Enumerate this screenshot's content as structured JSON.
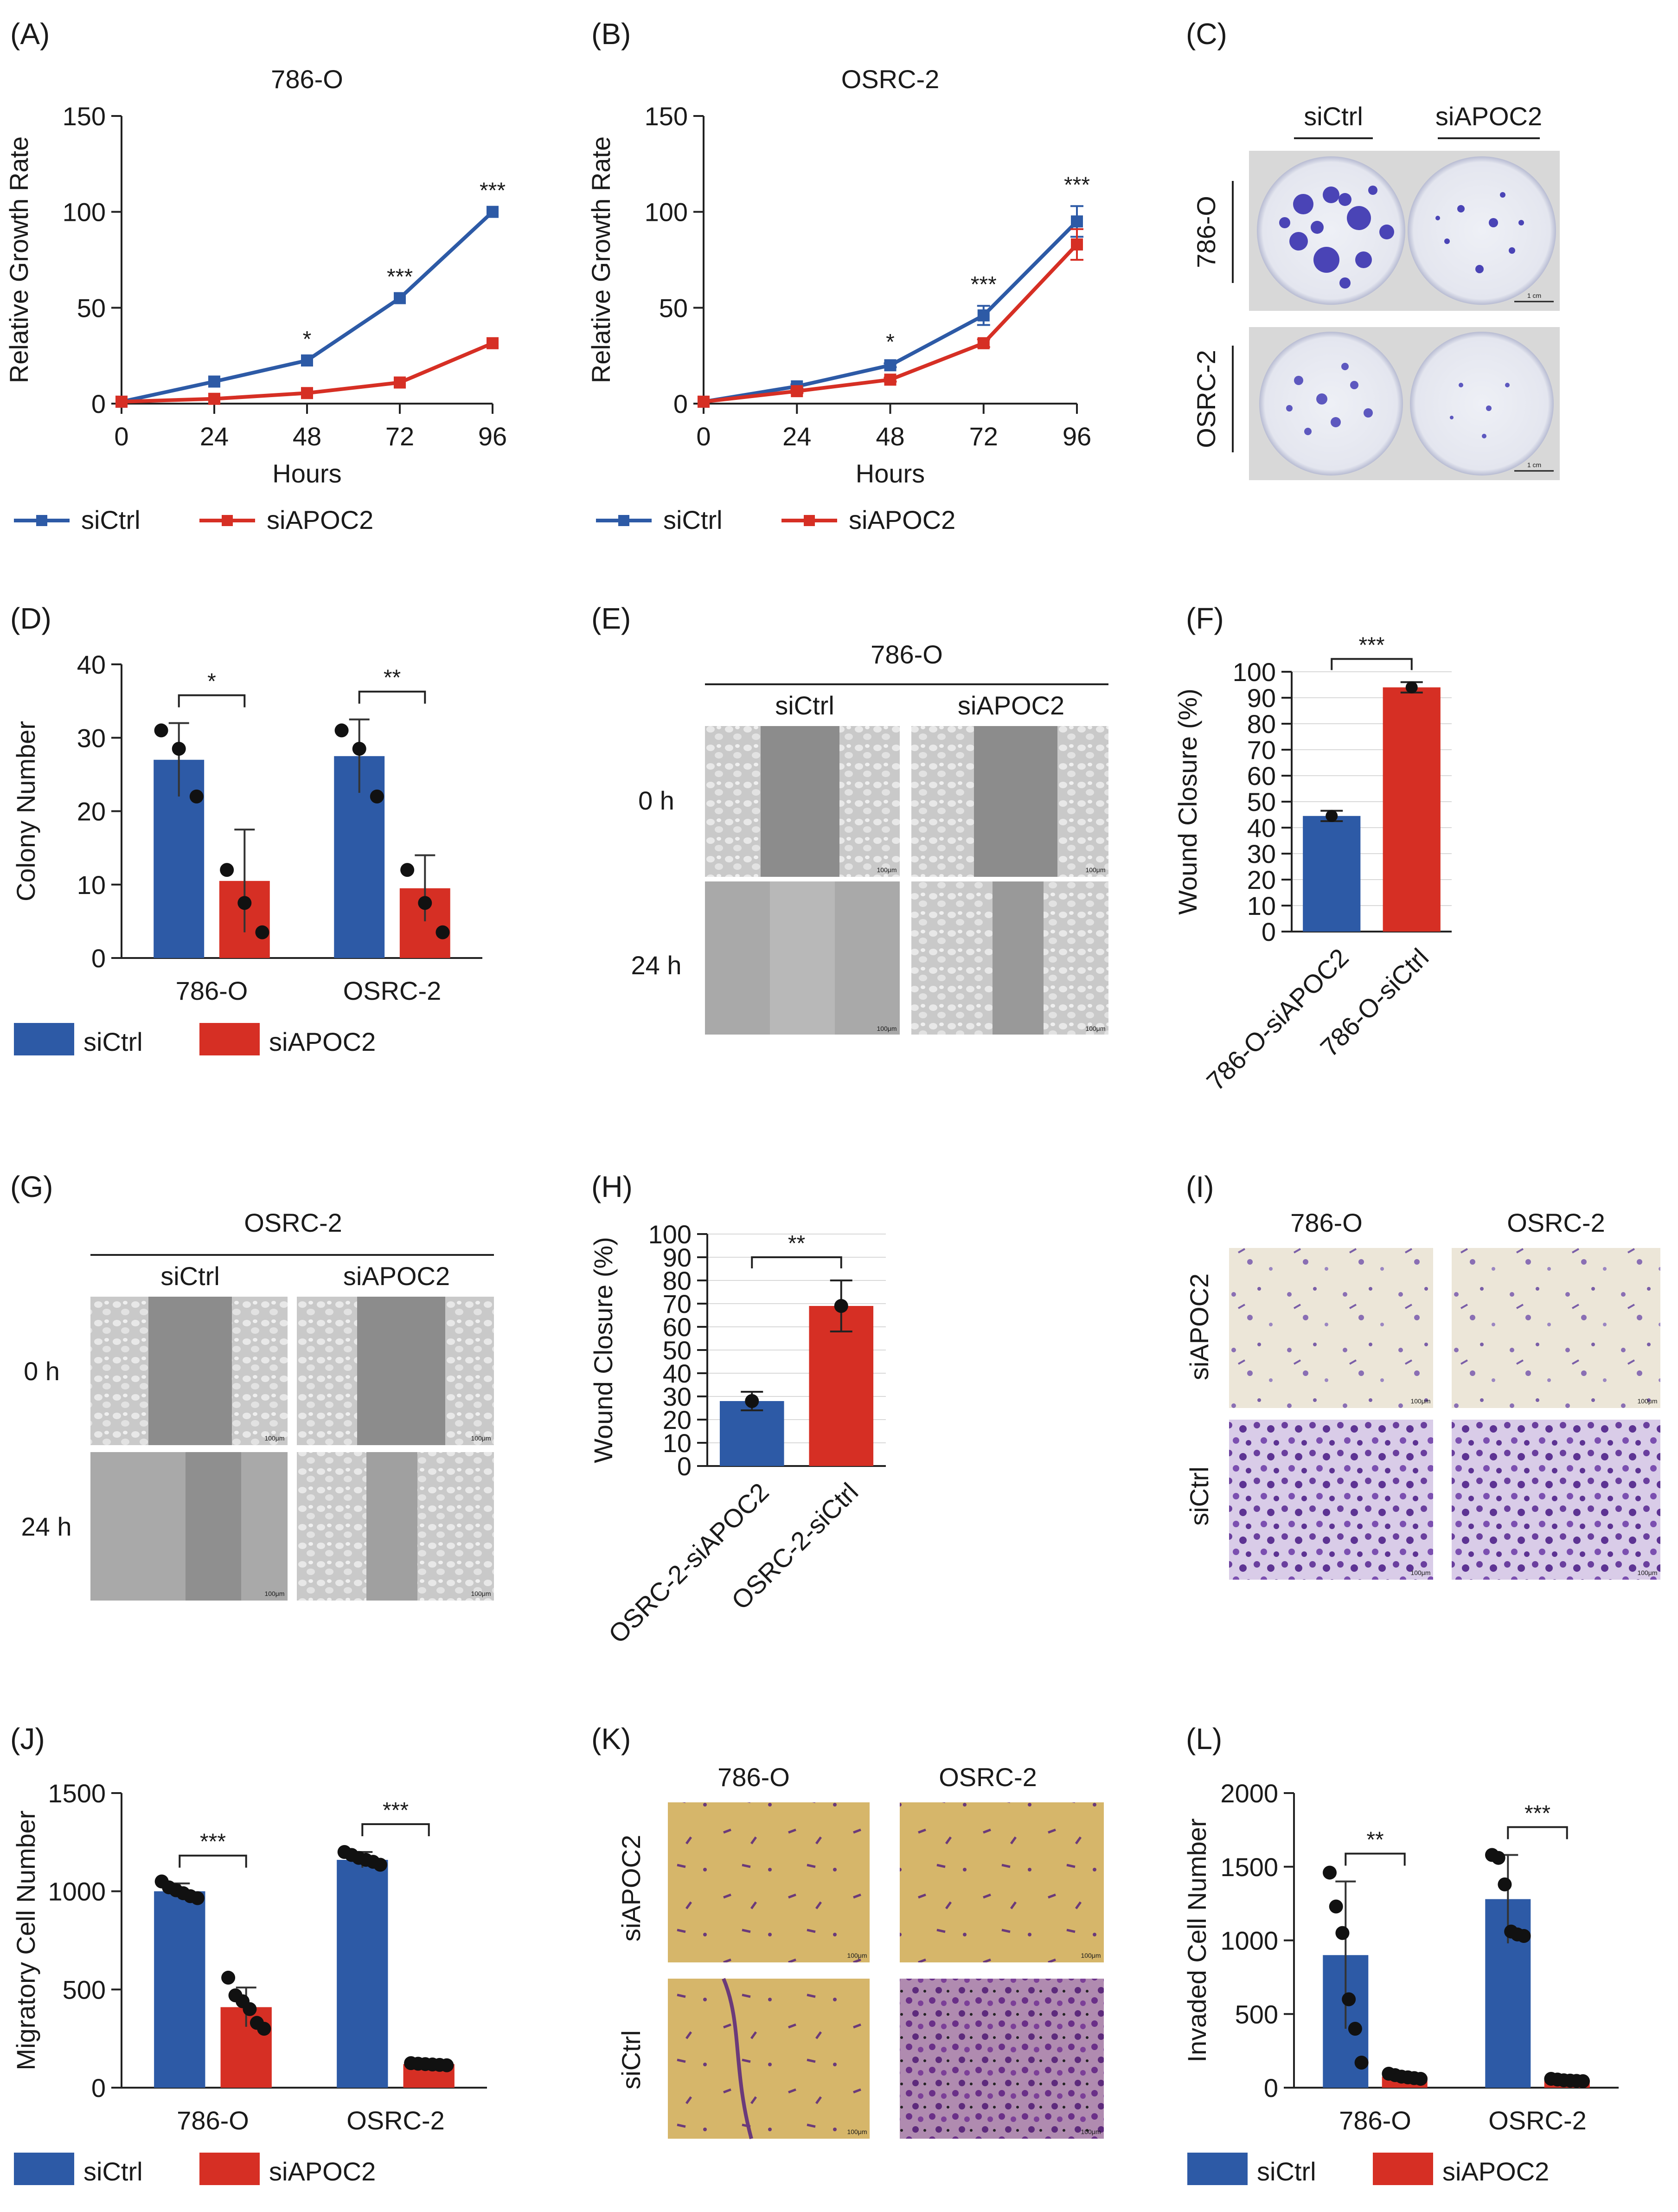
{
  "figure": {
    "panels": [
      {
        "letter": "(A)",
        "title": "786-O"
      },
      {
        "letter": "(B)",
        "title": "OSRC-2"
      },
      {
        "letter": "(C)"
      },
      {
        "letter": "(D)"
      },
      {
        "letter": "(E)"
      },
      {
        "letter": "(F)"
      },
      {
        "letter": "(G)"
      },
      {
        "letter": "(H)"
      },
      {
        "letter": "(I)"
      },
      {
        "letter": "(J)"
      },
      {
        "letter": "(K)"
      },
      {
        "letter": "(L)"
      }
    ],
    "image_panels": {
      "C": {
        "cols": [
          "siCtrl",
          "siAPOC2"
        ],
        "rows": [
          "786-O",
          "OSRC-2"
        ],
        "scale": "1 cm"
      },
      "E": {
        "title": "786-O",
        "cols": [
          "siCtrl",
          "siAPOC2"
        ],
        "rows": [
          "0 h",
          "24 h"
        ],
        "scale": "100μm"
      },
      "G": {
        "title": "OSRC-2",
        "cols": [
          "siCtrl",
          "siAPOC2"
        ],
        "rows": [
          "0 h",
          "24 h"
        ],
        "scale": "100μm"
      },
      "I": {
        "cols": [
          "786-O",
          "OSRC-2"
        ],
        "rows": [
          "siAPOC2",
          "siCtrl"
        ],
        "scale": "100μm"
      },
      "K": {
        "cols": [
          "786-O",
          "OSRC-2"
        ],
        "rows": [
          "siAPOC2",
          "siCtrl"
        ],
        "scale": "100μm"
      }
    }
  },
  "colors": {
    "siCtrl": "#2d5aa6",
    "siAPOC2": "#d62f24"
  },
  "chart_data": [
    {
      "id": "A",
      "type": "line",
      "title": "786-O",
      "xlabel": "Hours",
      "ylabel": "Relative Growth Rate",
      "x": [
        0,
        24,
        48,
        72,
        96
      ],
      "xlim": [
        0,
        96
      ],
      "ylim": [
        0,
        150
      ],
      "xticks": [
        "0",
        "24",
        "48",
        "72",
        "96"
      ],
      "yticks": [
        "0",
        "50",
        "100",
        "150"
      ],
      "series": [
        {
          "name": "siCtrl",
          "values": [
            1,
            11.5,
            22.5,
            55,
            100
          ]
        },
        {
          "name": "siAPOC2",
          "values": [
            1,
            2.5,
            5.5,
            11,
            31.5
          ]
        }
      ],
      "annotations": [
        {
          "x": 48,
          "text": "*"
        },
        {
          "x": 72,
          "text": "***"
        },
        {
          "x": 96,
          "text": "***"
        }
      ],
      "legend": "bottom"
    },
    {
      "id": "B",
      "type": "line",
      "title": "OSRC-2",
      "xlabel": "Hours",
      "ylabel": "Relative Growth Rate",
      "x": [
        0,
        24,
        48,
        72,
        96
      ],
      "xlim": [
        0,
        96
      ],
      "ylim": [
        0,
        150
      ],
      "xticks": [
        "0",
        "24",
        "48",
        "72",
        "96"
      ],
      "yticks": [
        "0",
        "50",
        "100",
        "150"
      ],
      "series": [
        {
          "name": "siCtrl",
          "values": [
            1,
            9,
            20,
            46,
            95
          ],
          "err": [
            0,
            1,
            1,
            5,
            8
          ]
        },
        {
          "name": "siAPOC2",
          "values": [
            1,
            6.5,
            12.5,
            31.5,
            83
          ],
          "err": [
            0,
            1,
            1,
            2,
            8
          ]
        }
      ],
      "annotations": [
        {
          "x": 48,
          "text": "*"
        },
        {
          "x": 72,
          "text": "***"
        },
        {
          "x": 96,
          "text": "***"
        }
      ],
      "legend": "bottom"
    },
    {
      "id": "D",
      "type": "bar",
      "xlabel": "",
      "ylabel": "Colony Number",
      "categories": [
        "786-O",
        "OSRC-2"
      ],
      "ylim": [
        0,
        40
      ],
      "yticks": [
        "0",
        "10",
        "20",
        "30",
        "40"
      ],
      "series": [
        {
          "name": "siCtrl",
          "values": [
            27,
            27.5
          ],
          "err": [
            5,
            5
          ],
          "points": [
            [
              31,
              28.5,
              22
            ],
            [
              31,
              28.5,
              22
            ]
          ]
        },
        {
          "name": "siAPOC2",
          "values": [
            10.5,
            9.5
          ],
          "err": [
            7,
            4.5
          ],
          "points": [
            [
              12,
              7.5,
              3.5
            ],
            [
              12,
              7.5,
              3.5
            ]
          ]
        }
      ],
      "significance": [
        "*",
        "**"
      ],
      "legend": "bottom"
    },
    {
      "id": "F",
      "type": "bar",
      "xlabel": "",
      "ylabel": "Wound Closure (%)",
      "categories": [
        "786-O-siAPOC2",
        "786-O-siCtrl"
      ],
      "bar_colors": [
        "#2d5aa6",
        "#d62f24"
      ],
      "values": [
        44.5,
        94
      ],
      "err": [
        2,
        2
      ],
      "ylim": [
        0,
        100
      ],
      "yticks": [
        "0",
        "10",
        "20",
        "30",
        "40",
        "50",
        "60",
        "70",
        "80",
        "90",
        "100"
      ],
      "grid": true,
      "significance": "***"
    },
    {
      "id": "H",
      "type": "bar",
      "xlabel": "",
      "ylabel": "Wound Closure (%)",
      "categories": [
        "OSRC-2-siAPOC2",
        "OSRC-2-siCtrl"
      ],
      "bar_colors": [
        "#2d5aa6",
        "#d62f24"
      ],
      "values": [
        28,
        69
      ],
      "err": [
        4,
        11
      ],
      "points": [
        28,
        69
      ],
      "ylim": [
        0,
        100
      ],
      "yticks": [
        "0",
        "10",
        "20",
        "30",
        "40",
        "50",
        "60",
        "70",
        "80",
        "90",
        "100"
      ],
      "grid": true,
      "significance": "**"
    },
    {
      "id": "J",
      "type": "bar",
      "xlabel": "",
      "ylabel": "Migratory Cell Number",
      "categories": [
        "786-O",
        "OSRC-2"
      ],
      "ylim": [
        0,
        1500
      ],
      "yticks": [
        "0",
        "500",
        "1000",
        "1500"
      ],
      "series": [
        {
          "name": "siCtrl",
          "values": [
            1000,
            1160
          ],
          "err": [
            40,
            40
          ],
          "points": [
            [
              1050,
              1020,
              1005,
              990,
              975,
              965
            ],
            [
              1200,
              1185,
              1170,
              1160,
              1150,
              1135
            ]
          ]
        },
        {
          "name": "siAPOC2",
          "values": [
            410,
            120
          ],
          "err": [
            100,
            6
          ],
          "points": [
            [
              560,
              470,
              440,
              400,
              330,
              300
            ],
            [
              125,
              122,
              120,
              118,
              116,
              114
            ]
          ]
        }
      ],
      "significance": [
        "***",
        "***"
      ],
      "legend": "bottom"
    },
    {
      "id": "L",
      "type": "bar",
      "xlabel": "",
      "ylabel": "Invaded Cell Number",
      "categories": [
        "786-O",
        "OSRC-2"
      ],
      "ylim": [
        0,
        2000
      ],
      "yticks": [
        "0",
        "500",
        "1000",
        "1500",
        "2000"
      ],
      "series": [
        {
          "name": "siCtrl",
          "values": [
            900,
            1280
          ],
          "err": [
            500,
            300
          ],
          "points": [
            [
              1460,
              1230,
              1050,
              600,
              400,
              170
            ],
            [
              1580,
              1560,
              1380,
              1060,
              1040,
              1030
            ]
          ]
        },
        {
          "name": "siAPOC2",
          "values": [
            75,
            50
          ],
          "err": [
            20,
            10
          ],
          "points": [
            [
              95,
              85,
              75,
              70,
              65,
              60
            ],
            [
              60,
              55,
              50,
              48,
              46,
              44
            ]
          ]
        }
      ],
      "significance": [
        "**",
        "***"
      ],
      "legend": "bottom"
    }
  ]
}
